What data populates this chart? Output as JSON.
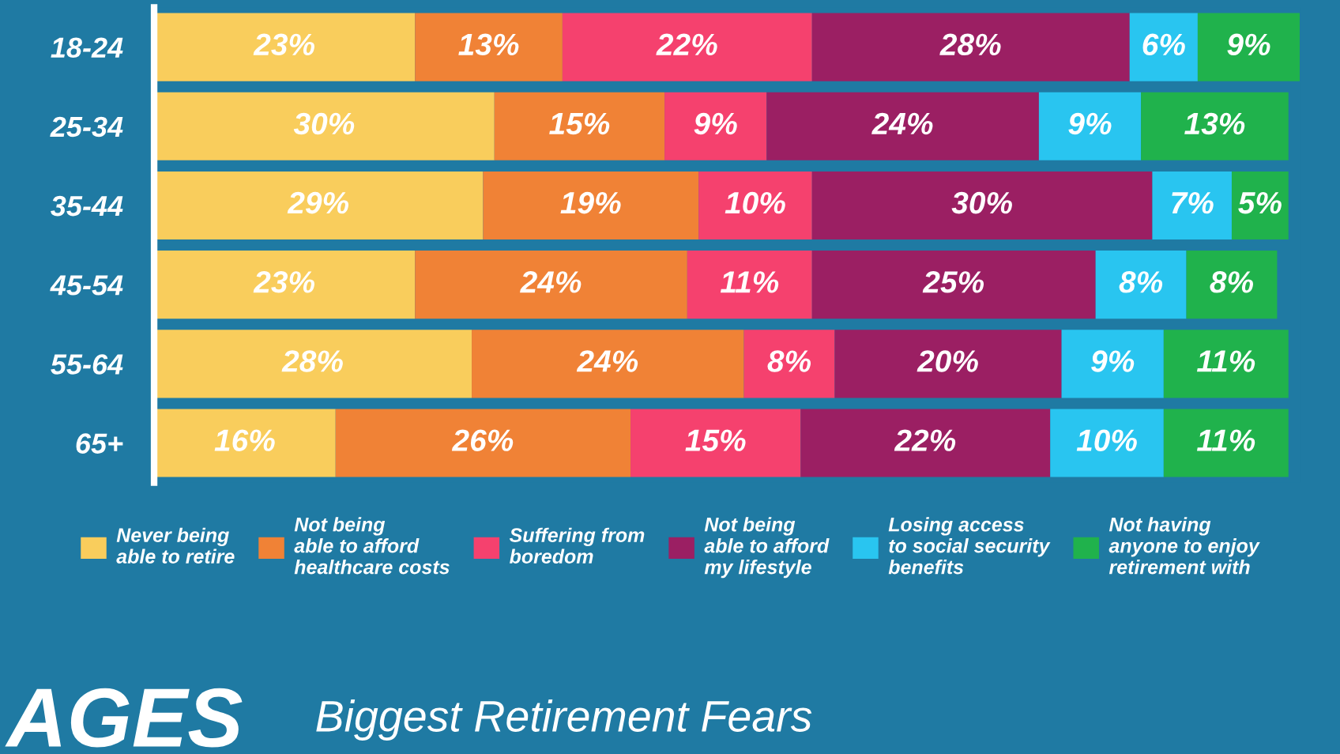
{
  "chart_data": {
    "type": "bar",
    "orientation": "horizontal",
    "stacked": true,
    "title": "AGES",
    "subtitle": "Biggest Retirement Fears",
    "categories": [
      "18-24",
      "25-34",
      "35-44",
      "45-54",
      "55-64",
      "65+"
    ],
    "series": [
      {
        "name": "Never being\nable to retire",
        "color": "#f9cd5c",
        "values": [
          23,
          30,
          29,
          23,
          28,
          16
        ],
        "value_labels": [
          "23%",
          "30%",
          "29%",
          "23%",
          "28%",
          "16%"
        ]
      },
      {
        "name": "Not being\nable to afford\nhealthcare costs",
        "color": "#f08236",
        "values": [
          13,
          15,
          19,
          24,
          24,
          26
        ],
        "value_labels": [
          "13%",
          "15%",
          "19%",
          "24%",
          "24%",
          "26%"
        ]
      },
      {
        "name": "Suffering from\nboredom",
        "color": "#f5416e",
        "values": [
          22,
          9,
          10,
          11,
          8,
          15
        ],
        "value_labels": [
          "22%",
          "9%",
          "10%",
          "11%",
          "8%",
          "15%"
        ]
      },
      {
        "name": "Not being\nable to afford\nmy lifestyle",
        "color": "#9b1f63",
        "values": [
          28,
          24,
          30,
          25,
          20,
          22
        ],
        "value_labels": [
          "28%",
          "24%",
          "30%",
          "25%",
          "20%",
          "22%"
        ]
      },
      {
        "name": "Losing access\nto social security\nbenefits",
        "color": "#29c5f0",
        "values": [
          6,
          9,
          7,
          8,
          9,
          10
        ],
        "value_labels": [
          "6%",
          "9%",
          "7%",
          "8%",
          "9%",
          "10%"
        ]
      },
      {
        "name": "Not having\nanyone to enjoy\nretirement with",
        "color": "#20b24c",
        "values": [
          9,
          13,
          5,
          8,
          11,
          11
        ],
        "value_labels": [
          "9%",
          "13%",
          "5%",
          "8%",
          "11%",
          "11%"
        ]
      }
    ],
    "legend": "bottom",
    "tick_labels": "y",
    "grid": false
  }
}
